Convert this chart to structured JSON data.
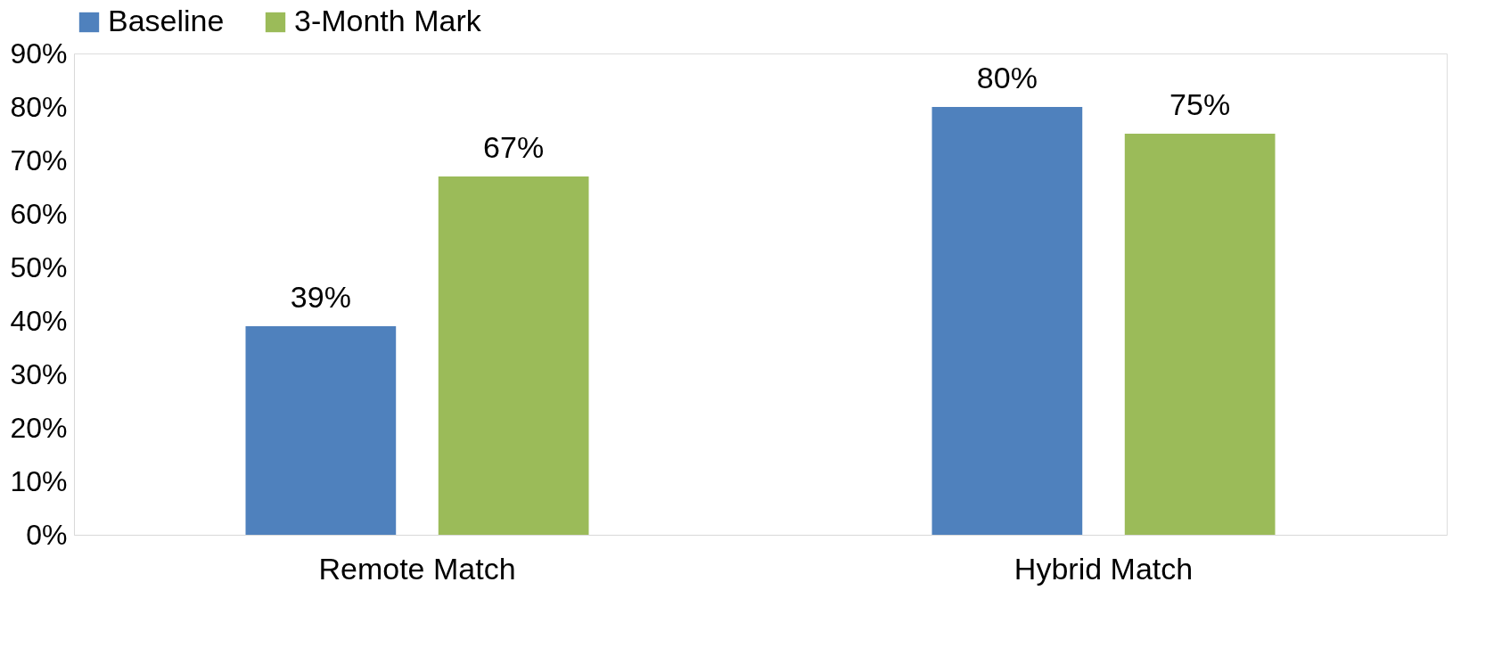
{
  "chart_data": {
    "type": "bar",
    "categories": [
      "Remote Match",
      "Hybrid Match"
    ],
    "series": [
      {
        "name": "Baseline",
        "color": "#4f81bd",
        "values": [
          39,
          80
        ],
        "value_labels": [
          "39%",
          "80%"
        ]
      },
      {
        "name": "3-Month Mark",
        "color": "#9bbb59",
        "values": [
          67,
          75
        ],
        "value_labels": [
          "67%",
          "75%"
        ]
      }
    ],
    "ylim": [
      0,
      90
    ],
    "yticks": [
      {
        "value": 0,
        "label": "0%"
      },
      {
        "value": 10,
        "label": "10%"
      },
      {
        "value": 20,
        "label": "20%"
      },
      {
        "value": 30,
        "label": "30%"
      },
      {
        "value": 40,
        "label": "40%"
      },
      {
        "value": 50,
        "label": "50%"
      },
      {
        "value": 60,
        "label": "60%"
      },
      {
        "value": 70,
        "label": "70%"
      },
      {
        "value": 80,
        "label": "80%"
      },
      {
        "value": 90,
        "label": "90%"
      }
    ],
    "grid": false,
    "legend": "top"
  }
}
